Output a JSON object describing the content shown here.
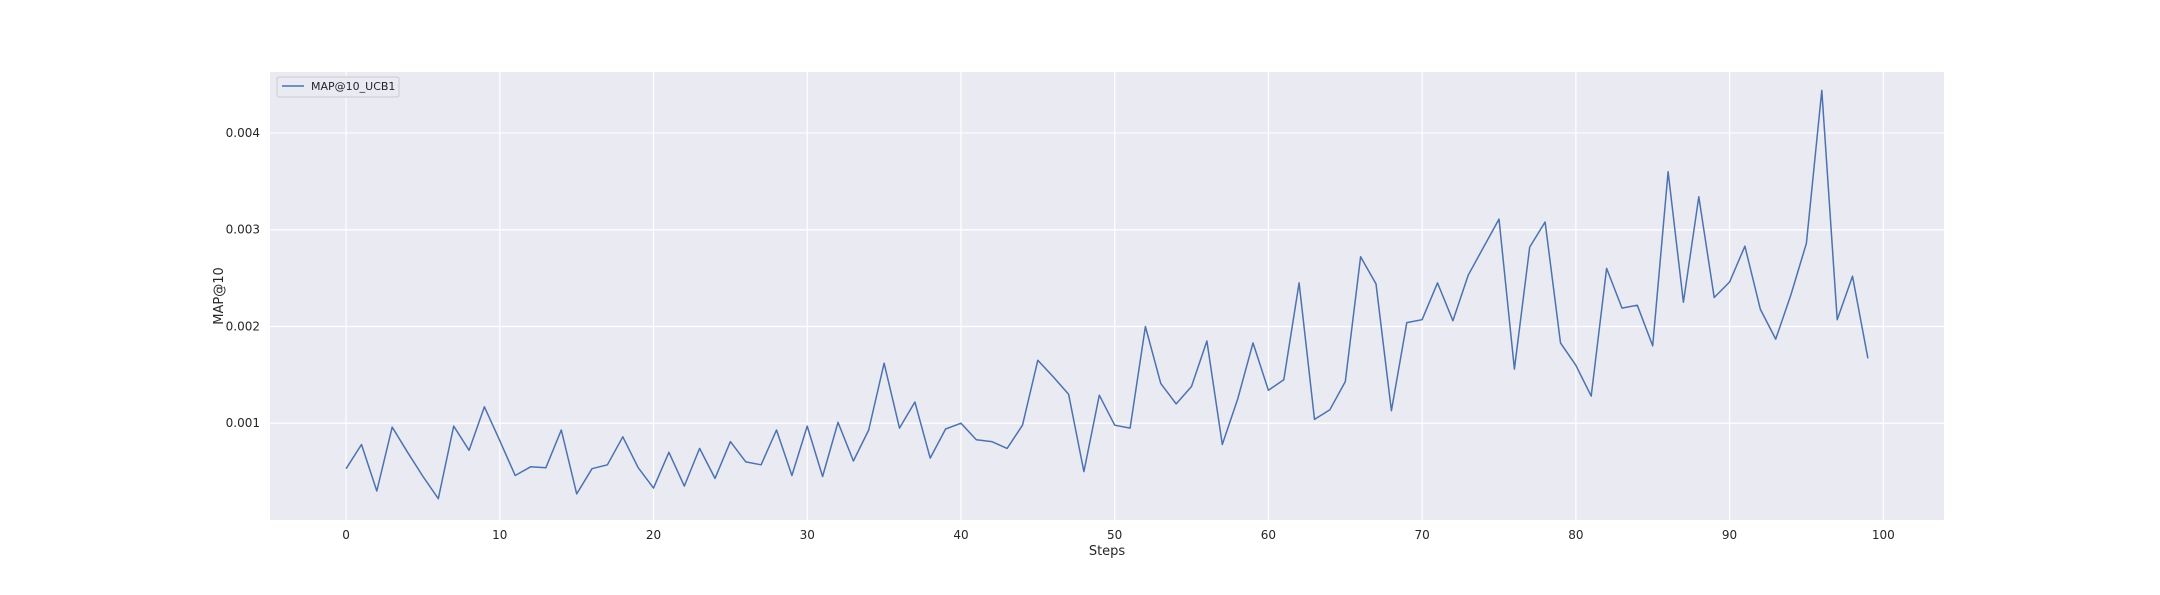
{
  "chart_data": {
    "type": "line",
    "xlabel": "Steps",
    "ylabel": "MAP@10",
    "xlim": [
      -4.95,
      103.95
    ],
    "ylim": [
      0.0,
      0.00463
    ],
    "xticks": [
      0,
      10,
      20,
      30,
      40,
      50,
      60,
      70,
      80,
      90,
      100
    ],
    "xtick_labels": [
      "0",
      "10",
      "20",
      "30",
      "40",
      "50",
      "60",
      "70",
      "80",
      "90",
      "100"
    ],
    "yticks": [
      0.001,
      0.002,
      0.003,
      0.004
    ],
    "ytick_labels": [
      "0.001",
      "0.002",
      "0.003",
      "0.004"
    ],
    "grid": true,
    "legend_position": "top-left",
    "colors": {
      "series": "#4c72b0",
      "plot_bg": "#eaeaf2",
      "grid": "#ffffff"
    },
    "series": [
      {
        "name": "MAP@10_UCB1",
        "x": [
          0,
          1,
          2,
          3,
          4,
          5,
          6,
          7,
          8,
          9,
          10,
          11,
          12,
          13,
          14,
          15,
          16,
          17,
          18,
          19,
          20,
          21,
          22,
          23,
          24,
          25,
          26,
          27,
          28,
          29,
          30,
          31,
          32,
          33,
          34,
          35,
          36,
          37,
          38,
          39,
          40,
          41,
          42,
          43,
          44,
          45,
          46,
          47,
          48,
          49,
          50,
          51,
          52,
          53,
          54,
          55,
          56,
          57,
          58,
          59,
          60,
          61,
          62,
          63,
          64,
          65,
          66,
          67,
          68,
          69,
          70,
          71,
          72,
          73,
          74,
          75,
          76,
          77,
          78,
          79,
          80,
          81,
          82,
          83,
          84,
          85,
          86,
          87,
          88,
          89,
          90,
          91,
          92,
          93,
          94,
          95,
          96,
          97,
          98,
          99
        ],
        "values": [
          0.00053,
          0.00078,
          0.0003,
          0.00096,
          0.0007,
          0.00045,
          0.00022,
          0.00097,
          0.00072,
          0.00117,
          0.00082,
          0.00046,
          0.00055,
          0.00054,
          0.00093,
          0.00027,
          0.00053,
          0.00057,
          0.00086,
          0.00054,
          0.00033,
          0.0007,
          0.00035,
          0.00074,
          0.00043,
          0.00081,
          0.0006,
          0.00057,
          0.00093,
          0.00046,
          0.00097,
          0.00045,
          0.00101,
          0.00061,
          0.00093,
          0.00162,
          0.00095,
          0.00122,
          0.00064,
          0.00094,
          0.001,
          0.00083,
          0.00081,
          0.00074,
          0.00098,
          0.00165,
          0.00148,
          0.0013,
          0.0005,
          0.00129,
          0.00098,
          0.00095,
          0.002,
          0.00141,
          0.0012,
          0.00138,
          0.00185,
          0.00078,
          0.00125,
          0.00183,
          0.00134,
          0.00145,
          0.00245,
          0.00104,
          0.00114,
          0.00143,
          0.00272,
          0.00244,
          0.00113,
          0.00204,
          0.00207,
          0.00245,
          0.00206,
          0.00253,
          0.00282,
          0.00311,
          0.00156,
          0.00282,
          0.00308,
          0.00183,
          0.0016,
          0.00128,
          0.0026,
          0.00219,
          0.00222,
          0.0018,
          0.0036,
          0.00225,
          0.00334,
          0.0023,
          0.00246,
          0.00283,
          0.00218,
          0.00187,
          0.00233,
          0.00286,
          0.00444,
          0.00207,
          0.00252,
          0.00167
        ]
      }
    ]
  }
}
